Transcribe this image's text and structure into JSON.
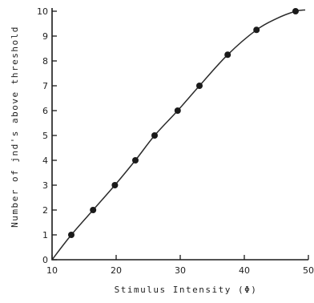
{
  "chart_data": {
    "type": "line",
    "title": "",
    "xlabel": "Stimulus  Intensity  (Φ)",
    "ylabel": "Number  of  jnd's  above  threshold",
    "xlim": [
      10,
      50
    ],
    "ylim": [
      0,
      10
    ],
    "x_ticks": [
      10,
      20,
      30,
      40,
      50
    ],
    "x_tick_labels": [
      "10",
      "20",
      "30",
      "40",
      "50"
    ],
    "y_ticks": [
      0,
      1,
      2,
      3,
      4,
      5,
      6,
      7,
      8,
      9,
      10
    ],
    "y_tick_labels": [
      "0",
      "1",
      "2",
      "3",
      "4",
      "5",
      "6",
      "7",
      "8",
      "9",
      "10"
    ],
    "grid": false,
    "series": [
      {
        "style": "points",
        "x": [
          13,
          16.4,
          19.8,
          23,
          26,
          29.6,
          33,
          37.4,
          41.9,
          48
        ],
        "y": [
          1,
          2,
          3,
          4,
          5,
          6,
          7,
          8.25,
          9.25,
          10
        ]
      },
      {
        "style": "curve",
        "x": [
          10,
          13,
          16.4,
          19.8,
          23,
          26,
          29.6,
          33,
          37.4,
          41.9,
          45,
          48,
          49.5
        ],
        "y": [
          0,
          1,
          2,
          3,
          4,
          5,
          6,
          7,
          8.25,
          9.25,
          9.7,
          10,
          10.05
        ]
      }
    ]
  }
}
